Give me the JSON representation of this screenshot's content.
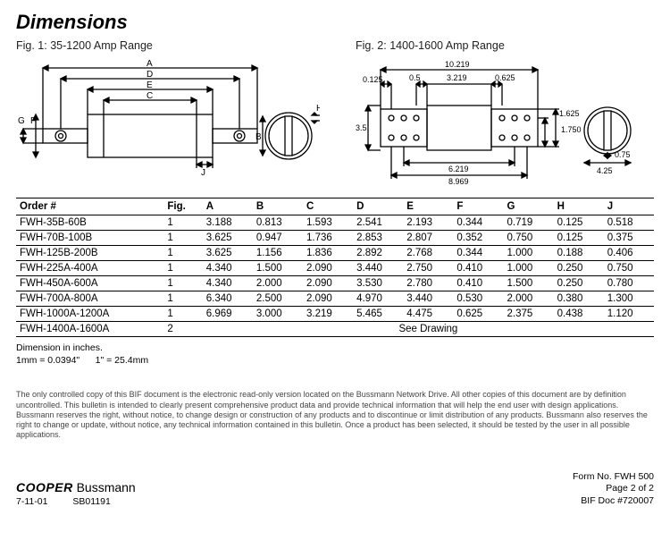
{
  "title": "Dimensions",
  "fig1_label": "Fig. 1: 35-1200 Amp Range",
  "fig2_label": "Fig. 2: 1400-1600 Amp Range",
  "fig2_dims": {
    "w": "10.219",
    "m1": "0.125",
    "m2": "0.5",
    "m3": "3.219",
    "m4": "0.625",
    "h": "3.5",
    "b1": "6.219",
    "b2": "8.969",
    "r1": "1.625",
    "r2": "1.750",
    "cw": "4.25",
    "ct": "0.75"
  },
  "columns": [
    "Order #",
    "Fig.",
    "A",
    "B",
    "C",
    "D",
    "E",
    "F",
    "G",
    "H",
    "J"
  ],
  "rows": [
    {
      "order": "FWH-35B-60B",
      "fig": "1",
      "a": "3.188",
      "b": "0.813",
      "c": "1.593",
      "d": "2.541",
      "e": "2.193",
      "f": "0.344",
      "g": "0.719",
      "h": "0.125",
      "j": "0.518"
    },
    {
      "order": "FWH-70B-100B",
      "fig": "1",
      "a": "3.625",
      "b": "0.947",
      "c": "1.736",
      "d": "2.853",
      "e": "2.807",
      "f": "0.352",
      "g": "0.750",
      "h": "0.125",
      "j": "0.375"
    },
    {
      "order": "FWH-125B-200B",
      "fig": "1",
      "a": "3.625",
      "b": "1.156",
      "c": "1.836",
      "d": "2.892",
      "e": "2.768",
      "f": "0.344",
      "g": "1.000",
      "h": "0.188",
      "j": "0.406"
    },
    {
      "order": "FWH-225A-400A",
      "fig": "1",
      "a": "4.340",
      "b": "1.500",
      "c": "2.090",
      "d": "3.440",
      "e": "2.750",
      "f": "0.410",
      "g": "1.000",
      "h": "0.250",
      "j": "0.750"
    },
    {
      "order": "FWH-450A-600A",
      "fig": "1",
      "a": "4.340",
      "b": "2.000",
      "c": "2.090",
      "d": "3.530",
      "e": "2.780",
      "f": "0.410",
      "g": "1.500",
      "h": "0.250",
      "j": "0.780"
    },
    {
      "order": "FWH-700A-800A",
      "fig": "1",
      "a": "6.340",
      "b": "2.500",
      "c": "2.090",
      "d": "4.970",
      "e": "3.440",
      "f": "0.530",
      "g": "2.000",
      "h": "0.380",
      "j": "1.300"
    },
    {
      "order": "FWH-1000A-1200A",
      "fig": "1",
      "a": "6.969",
      "b": "3.000",
      "c": "3.219",
      "d": "5.465",
      "e": "4.475",
      "f": "0.625",
      "g": "2.375",
      "h": "0.438",
      "j": "1.120"
    }
  ],
  "lastRow": {
    "order": "FWH-1400A-1600A",
    "fig": "2",
    "note": "See Drawing"
  },
  "dimnote1": "Dimension in inches.",
  "dimnote2": "1mm = 0.0394\"      1\" = 25.4mm",
  "disclaimer": "The only controlled copy of this BIF document is the electronic read-only version located on the Bussmann Network Drive. All other copies of this document are by definition uncontrolled. This bulletin is intended to clearly present comprehensive product data and provide technical information that will help the end user with design applications. Bussmann reserves the right, without notice, to change design or construction of any products and to discontinue or limit distribution of any products. Bussmann also reserves the right to change or update, without notice, any technical information contained in this bulletin. Once a product has been selected, it should be tested by the user in all possible applications.",
  "footer": {
    "brand1": "COOPER",
    "brand2": " Bussmann",
    "date": "7-11-01",
    "code": "SB01191",
    "form": "Form No. FWH 500",
    "page": "Page 2 of 2",
    "doc": "BIF Doc #720007"
  },
  "svg": {
    "stroke": "#000",
    "fill": "none",
    "accent": "#222"
  }
}
